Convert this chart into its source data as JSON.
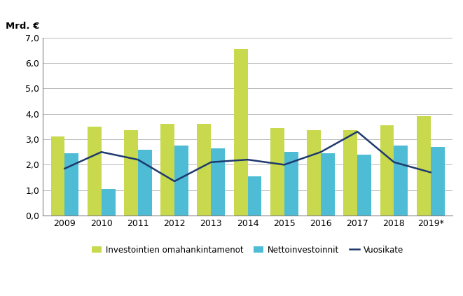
{
  "years": [
    "2009",
    "2010",
    "2011",
    "2012",
    "2013",
    "2014",
    "2015",
    "2016",
    "2017",
    "2018",
    "2019*"
  ],
  "omahankintamenot": [
    3.1,
    3.5,
    3.35,
    3.6,
    3.6,
    6.55,
    3.45,
    3.35,
    3.35,
    3.55,
    3.9
  ],
  "nettoinvestoinnit": [
    2.45,
    1.05,
    2.6,
    2.75,
    2.65,
    1.55,
    2.5,
    2.45,
    2.4,
    2.75,
    2.7
  ],
  "vuosikate": [
    1.85,
    2.5,
    2.2,
    1.35,
    2.1,
    2.2,
    2.0,
    2.5,
    3.3,
    2.1,
    1.7
  ],
  "bar_color_omahankinta": "#c8d94e",
  "bar_color_netto": "#4dbcd4",
  "line_color_vuosikate": "#1e3a6e",
  "ylabel_text": "Mrd. €",
  "ylim": [
    0,
    7.0
  ],
  "yticks": [
    0.0,
    1.0,
    2.0,
    3.0,
    4.0,
    5.0,
    6.0,
    7.0
  ],
  "legend_omahankinta": "Investointien omahankintamenot",
  "legend_netto": "Nettoinvestoinnit",
  "legend_vuosikate": "Vuosikate",
  "background_color": "#ffffff",
  "grid_color": "#b0b0b0",
  "spine_color": "#808080"
}
